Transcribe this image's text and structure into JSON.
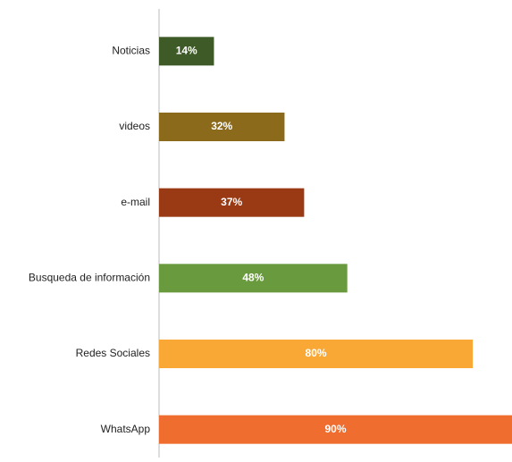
{
  "chart_data": {
    "type": "barh",
    "categories": [
      "Noticias",
      "videos",
      "e-mail",
      "Busqueda de información",
      "Redes Sociales",
      "WhatsApp"
    ],
    "values": [
      14,
      32,
      37,
      48,
      80,
      90
    ],
    "value_labels": [
      "14%",
      "32%",
      "37%",
      "48%",
      "80%",
      "90%"
    ],
    "colors": [
      "#3e5a26",
      "#8c6a1c",
      "#9a3a14",
      "#6a9a3e",
      "#f9a836",
      "#ee6d2f"
    ]
  }
}
